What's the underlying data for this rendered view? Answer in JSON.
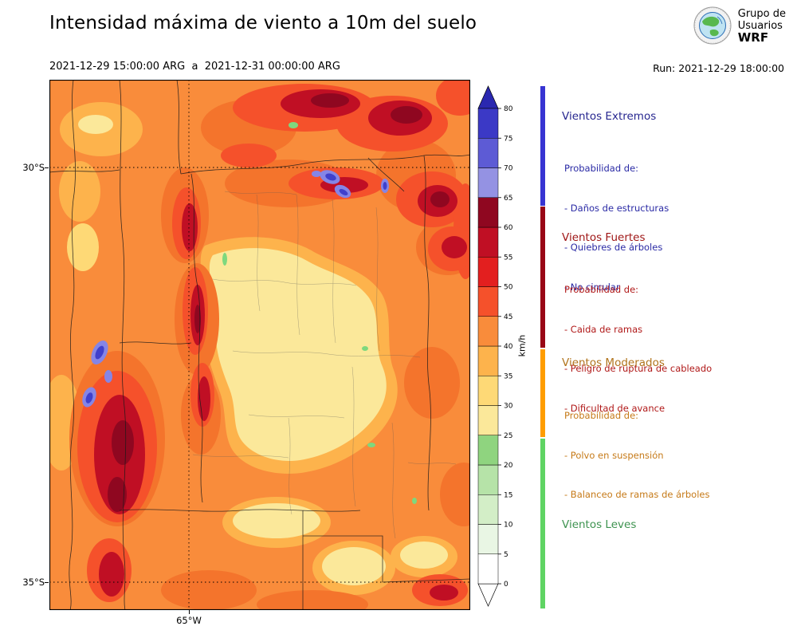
{
  "header": {
    "title": "Intensidad máxima de viento a 10m del suelo",
    "period": "2021-12-29 15:00:00 ARG  a  2021-12-31 00:00:00 ARG",
    "run_label": "Run: 2021-12-29 18:00:00",
    "logo": {
      "org_line1": "Grupo de",
      "org_line2": "Usuarios",
      "org_line3": "WRF"
    }
  },
  "map": {
    "lat_tick_30": "30°S",
    "lat_tick_35": "35°S",
    "lon_tick_65": "65°W"
  },
  "colorbar": {
    "unit": "km/h",
    "levels": [
      0,
      5,
      10,
      15,
      20,
      25,
      30,
      35,
      40,
      45,
      50,
      55,
      60,
      65,
      70,
      75,
      80
    ],
    "colors": [
      "#ffffff",
      "#e9f6e4",
      "#d3eec7",
      "#b6e3a8",
      "#8fd47f",
      "#fbe89a",
      "#fed976",
      "#fdb34c",
      "#f98c3b",
      "#f5512b",
      "#e31f1f",
      "#c00f24",
      "#8f0720",
      "#9492e3",
      "#5d5bd5",
      "#3b39c6"
    ],
    "over_color": "#2a28b0",
    "under_color": "#ffffff"
  },
  "legend": {
    "sections": [
      {
        "name": "Vientos Extremos",
        "name_color": "#26268f",
        "item_color": "#2a2aa5",
        "bar_color": "#3734d2",
        "intro": "Probabilidad de:",
        "items": [
          "- Daños de estructuras",
          "- Quiebres de árboles",
          "- No circular"
        ]
      },
      {
        "name": "Vientos Fuertes",
        "name_color": "#9e1414",
        "item_color": "#b01818",
        "bar_color": "#990716",
        "intro": "Probabilidad de:",
        "items": [
          "- Caida de ramas",
          "- Peligro de ruptura de cableado",
          "- Dificultad de avance"
        ]
      },
      {
        "name": "Vientos Moderados",
        "name_color": "#b1741c",
        "item_color": "#c67a18",
        "bar_color": "#ff9d00",
        "intro": "Probabilidad de:",
        "items": [
          "- Polvo en suspensión",
          "- Balanceo de ramas de árboles"
        ]
      },
      {
        "name": "Vientos Leves",
        "name_color": "#3e9350",
        "item_color": "#3e9350",
        "bar_color": "#5fd463",
        "intro": "",
        "items": []
      }
    ]
  },
  "chart_data": {
    "type": "heatmap",
    "title": "Intensidad máxima de viento a 10m del suelo",
    "period": "2021-12-29 15:00:00 ARG  a  2021-12-31 00:00:00 ARG",
    "run": "Run: 2021-12-29 18:00:00",
    "unit": "km/h",
    "colorbar_levels": [
      0,
      5,
      10,
      15,
      20,
      25,
      30,
      35,
      40,
      45,
      50,
      55,
      60,
      65,
      70,
      75,
      80
    ],
    "colorbar_colors": [
      "#ffffff",
      "#e9f6e4",
      "#d3eec7",
      "#b6e3a8",
      "#8fd47f",
      "#fbe89a",
      "#fed976",
      "#fdb34c",
      "#f98c3b",
      "#f5512b",
      "#e31f1f",
      "#c00f24",
      "#8f0720",
      "#9492e3",
      "#5d5bd5",
      "#3b39c6"
    ],
    "colorbar_extend": "both",
    "y_ticks": [
      "30°S",
      "35°S"
    ],
    "x_ticks": [
      "65°W"
    ],
    "legend_position": "right",
    "categories": [
      {
        "label": "Vientos Extremos",
        "range_kmh": [
          65,
          80
        ],
        "effects": [
          "Daños de estructuras",
          "Quiebres de árboles",
          "No circular"
        ]
      },
      {
        "label": "Vientos Fuertes",
        "range_kmh": [
          40,
          65
        ],
        "effects": [
          "Caida de ramas",
          "Peligro de ruptura de cableado",
          "Dificultad de avance"
        ]
      },
      {
        "label": "Vientos Moderados",
        "range_kmh": [
          25,
          40
        ],
        "effects": [
          "Polvo en suspensión",
          "Balanceo de ramas de árboles"
        ]
      },
      {
        "label": "Vientos Leves",
        "range_kmh": [
          0,
          25
        ],
        "effects": []
      }
    ]
  }
}
